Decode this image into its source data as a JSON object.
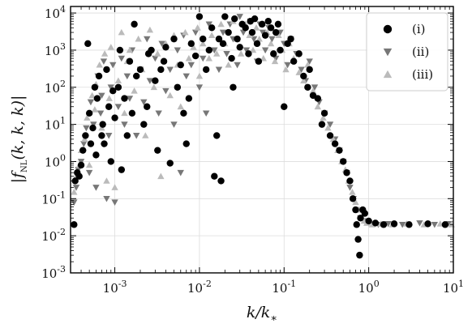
{
  "chart_data": {
    "type": "scatter",
    "xlabel": "k/k_*",
    "ylabel": "|f_NL(k, k, k)|",
    "xscale": "log",
    "yscale": "log",
    "xlim": [
      0.0003,
      10
    ],
    "ylim": [
      0.001,
      15000
    ],
    "x_ticks": [
      0.001,
      0.01,
      0.1,
      1,
      10
    ],
    "x_tick_labels": [
      "10^-3",
      "10^-2",
      "10^-1",
      "10^0",
      "10^1"
    ],
    "y_ticks": [
      0.001,
      0.01,
      0.1,
      1,
      10,
      100,
      1000,
      10000
    ],
    "y_tick_labels": [
      "10^-3",
      "10^-2",
      "10^-1",
      "10^0",
      "10^1",
      "10^2",
      "10^3",
      "10^4"
    ],
    "grid": true,
    "legend_position": "top-right",
    "series": [
      {
        "name": "(i)",
        "marker": "circle",
        "color": "#000000",
        "points": [
          [
            0.00033,
            0.02
          ],
          [
            0.00034,
            0.3
          ],
          [
            0.00036,
            0.5
          ],
          [
            0.00038,
            0.4
          ],
          [
            0.0004,
            0.8
          ],
          [
            0.00042,
            2
          ],
          [
            0.00045,
            5
          ],
          [
            0.00048,
            1500
          ],
          [
            0.0005,
            20
          ],
          [
            0.00052,
            3
          ],
          [
            0.00055,
            8
          ],
          [
            0.00058,
            100
          ],
          [
            0.0006,
            1.5
          ],
          [
            0.00062,
            50
          ],
          [
            0.00065,
            200
          ],
          [
            0.0007,
            5
          ],
          [
            0.00072,
            10
          ],
          [
            0.00075,
            3
          ],
          [
            0.0008,
            300
          ],
          [
            0.00085,
            30
          ],
          [
            0.0009,
            1
          ],
          [
            0.00095,
            80
          ],
          [
            0.001,
            15
          ],
          [
            0.0011,
            100
          ],
          [
            0.00115,
            1000
          ],
          [
            0.0012,
            0.6
          ],
          [
            0.0013,
            50
          ],
          [
            0.0014,
            5
          ],
          [
            0.0015,
            500
          ],
          [
            0.0016,
            20
          ],
          [
            0.0017,
            5000
          ],
          [
            0.0018,
            200
          ],
          [
            0.002,
            300
          ],
          [
            0.0022,
            10
          ],
          [
            0.0024,
            30
          ],
          [
            0.0025,
            800
          ],
          [
            0.0027,
            1000
          ],
          [
            0.003,
            150
          ],
          [
            0.0032,
            2
          ],
          [
            0.0035,
            300
          ],
          [
            0.0038,
            500
          ],
          [
            0.004,
            1200
          ],
          [
            0.0045,
            0.9
          ],
          [
            0.005,
            2000
          ],
          [
            0.0055,
            100
          ],
          [
            0.006,
            400
          ],
          [
            0.0065,
            20
          ],
          [
            0.007,
            3
          ],
          [
            0.0075,
            50
          ],
          [
            0.008,
            1500
          ],
          [
            0.009,
            700
          ],
          [
            0.01,
            8000
          ],
          [
            0.011,
            2000
          ],
          [
            0.012,
            300
          ],
          [
            0.013,
            1000
          ],
          [
            0.014,
            4000
          ],
          [
            0.015,
            0.4
          ],
          [
            0.016,
            5
          ],
          [
            0.017,
            2000
          ],
          [
            0.018,
            0.3
          ],
          [
            0.019,
            1500
          ],
          [
            0.02,
            8000
          ],
          [
            0.022,
            3000
          ],
          [
            0.024,
            600
          ],
          [
            0.025,
            100
          ],
          [
            0.026,
            7000
          ],
          [
            0.028,
            2000
          ],
          [
            0.03,
            1200
          ],
          [
            0.032,
            5000
          ],
          [
            0.035,
            4000
          ],
          [
            0.038,
            800
          ],
          [
            0.04,
            6000
          ],
          [
            0.042,
            3000
          ],
          [
            0.045,
            7000
          ],
          [
            0.048,
            1500
          ],
          [
            0.05,
            500
          ],
          [
            0.055,
            5000
          ],
          [
            0.06,
            2500
          ],
          [
            0.065,
            6000
          ],
          [
            0.07,
            4000
          ],
          [
            0.075,
            800
          ],
          [
            0.08,
            3000
          ],
          [
            0.085,
            5000
          ],
          [
            0.09,
            1000
          ],
          [
            0.1,
            30
          ],
          [
            0.11,
            1500
          ],
          [
            0.12,
            2000
          ],
          [
            0.13,
            500
          ],
          [
            0.15,
            800
          ],
          [
            0.17,
            200
          ],
          [
            0.19,
            100
          ],
          [
            0.2,
            300
          ],
          [
            0.22,
            60
          ],
          [
            0.25,
            50
          ],
          [
            0.28,
            10
          ],
          [
            0.3,
            20
          ],
          [
            0.35,
            5
          ],
          [
            0.4,
            3
          ],
          [
            0.45,
            2
          ],
          [
            0.5,
            1
          ],
          [
            0.55,
            0.5
          ],
          [
            0.6,
            0.3
          ],
          [
            0.65,
            0.1
          ],
          [
            0.7,
            0.05
          ],
          [
            0.72,
            0.02
          ],
          [
            0.75,
            0.008
          ],
          [
            0.78,
            0.003
          ],
          [
            0.8,
            0.03
          ],
          [
            0.85,
            0.05
          ],
          [
            0.9,
            0.04
          ],
          [
            1.0,
            0.025
          ],
          [
            1.2,
            0.022
          ],
          [
            1.5,
            0.02
          ],
          [
            2,
            0.021
          ],
          [
            3,
            0.02
          ],
          [
            5,
            0.021
          ],
          [
            8,
            0.02
          ]
        ]
      },
      {
        "name": "(ii)",
        "marker": "triangle-down",
        "color": "#777777",
        "points": [
          [
            0.00033,
            0.08
          ],
          [
            0.00035,
            0.2
          ],
          [
            0.00037,
            0.6
          ],
          [
            0.0004,
            1
          ],
          [
            0.00043,
            3
          ],
          [
            0.00046,
            8
          ],
          [
            0.0005,
            0.5
          ],
          [
            0.00052,
            40
          ],
          [
            0.00056,
            10
          ],
          [
            0.0006,
            0.2
          ],
          [
            0.00063,
            200
          ],
          [
            0.00068,
            20
          ],
          [
            0.0007,
            60
          ],
          [
            0.00074,
            500
          ],
          [
            0.0008,
            0.1
          ],
          [
            0.00085,
            5
          ],
          [
            0.0009,
            100
          ],
          [
            0.00095,
            400
          ],
          [
            0.001,
            0.08
          ],
          [
            0.0011,
            30
          ],
          [
            0.0012,
            600
          ],
          [
            0.0013,
            10
          ],
          [
            0.0014,
            200
          ],
          [
            0.0015,
            50
          ],
          [
            0.0016,
            1000
          ],
          [
            0.0018,
            5
          ],
          [
            0.002,
            300
          ],
          [
            0.0022,
            40
          ],
          [
            0.0024,
            2000
          ],
          [
            0.0026,
            150
          ],
          [
            0.003,
            600
          ],
          [
            0.0033,
            20
          ],
          [
            0.0036,
            1500
          ],
          [
            0.004,
            80
          ],
          [
            0.0045,
            300
          ],
          [
            0.005,
            10
          ],
          [
            0.0055,
            1000
          ],
          [
            0.006,
            0.5
          ],
          [
            0.0065,
            2500
          ],
          [
            0.007,
            200
          ],
          [
            0.008,
            400
          ],
          [
            0.009,
            3000
          ],
          [
            0.01,
            100
          ],
          [
            0.011,
            600
          ],
          [
            0.012,
            20
          ],
          [
            0.013,
            5000
          ],
          [
            0.015,
            1000
          ],
          [
            0.017,
            300
          ],
          [
            0.019,
            3000
          ],
          [
            0.021,
            800
          ],
          [
            0.023,
            5000
          ],
          [
            0.025,
            2000
          ],
          [
            0.028,
            400
          ],
          [
            0.03,
            8000
          ],
          [
            0.033,
            3000
          ],
          [
            0.036,
            1000
          ],
          [
            0.04,
            6000
          ],
          [
            0.044,
            2000
          ],
          [
            0.048,
            500
          ],
          [
            0.052,
            5000
          ],
          [
            0.056,
            3000
          ],
          [
            0.06,
            1000
          ],
          [
            0.066,
            4000
          ],
          [
            0.072,
            2000
          ],
          [
            0.08,
            600
          ],
          [
            0.09,
            3000
          ],
          [
            0.1,
            1500
          ],
          [
            0.11,
            400
          ],
          [
            0.12,
            2000
          ],
          [
            0.14,
            800
          ],
          [
            0.16,
            300
          ],
          [
            0.18,
            150
          ],
          [
            0.2,
            500
          ],
          [
            0.23,
            100
          ],
          [
            0.26,
            40
          ],
          [
            0.3,
            20
          ],
          [
            0.35,
            10
          ],
          [
            0.4,
            4
          ],
          [
            0.45,
            2
          ],
          [
            0.5,
            1
          ],
          [
            0.55,
            0.5
          ],
          [
            0.6,
            0.2
          ],
          [
            0.66,
            0.1
          ],
          [
            0.72,
            0.05
          ],
          [
            0.8,
            0.03
          ],
          [
            0.9,
            0.025
          ],
          [
            1.0,
            0.022
          ],
          [
            1.3,
            0.02
          ],
          [
            1.7,
            0.021
          ],
          [
            2.5,
            0.02
          ],
          [
            4,
            0.022
          ],
          [
            6,
            0.02
          ],
          [
            9,
            0.021
          ]
        ]
      },
      {
        "name": "(iii)",
        "marker": "triangle-up",
        "color": "#bbbbbb",
        "points": [
          [
            0.00033,
            0.15
          ],
          [
            0.00035,
            0.4
          ],
          [
            0.00038,
            0.8
          ],
          [
            0.0004,
            2
          ],
          [
            0.00044,
            4
          ],
          [
            0.00047,
            15
          ],
          [
            0.0005,
            0.8
          ],
          [
            0.00054,
            60
          ],
          [
            0.00058,
            25
          ],
          [
            0.0006,
            120
          ],
          [
            0.00066,
            400
          ],
          [
            0.0007,
            8
          ],
          [
            0.00076,
            800
          ],
          [
            0.0008,
            0.3
          ],
          [
            0.00086,
            50
          ],
          [
            0.0009,
            1200
          ],
          [
            0.001,
            0.2
          ],
          [
            0.0011,
            150
          ],
          [
            0.0012,
            3000
          ],
          [
            0.0013,
            20
          ],
          [
            0.0014,
            500
          ],
          [
            0.0015,
            1000
          ],
          [
            0.0017,
            80
          ],
          [
            0.0019,
            2000
          ],
          [
            0.0021,
            300
          ],
          [
            0.0023,
            5
          ],
          [
            0.0026,
            3500
          ],
          [
            0.0029,
            100
          ],
          [
            0.0032,
            800
          ],
          [
            0.0035,
            0.4
          ],
          [
            0.004,
            1500
          ],
          [
            0.0045,
            60
          ],
          [
            0.005,
            2500
          ],
          [
            0.0055,
            400
          ],
          [
            0.006,
            30
          ],
          [
            0.0068,
            3000
          ],
          [
            0.0075,
            600
          ],
          [
            0.0085,
            1200
          ],
          [
            0.0095,
            4000
          ],
          [
            0.01,
            200
          ],
          [
            0.011,
            1500
          ],
          [
            0.013,
            600
          ],
          [
            0.014,
            2500
          ],
          [
            0.016,
            800
          ],
          [
            0.018,
            5000
          ],
          [
            0.02,
            1500
          ],
          [
            0.022,
            400
          ],
          [
            0.025,
            6000
          ],
          [
            0.028,
            2000
          ],
          [
            0.031,
            800
          ],
          [
            0.035,
            5000
          ],
          [
            0.039,
            2500
          ],
          [
            0.043,
            1000
          ],
          [
            0.047,
            4000
          ],
          [
            0.051,
            2000
          ],
          [
            0.057,
            600
          ],
          [
            0.063,
            3000
          ],
          [
            0.07,
            1500
          ],
          [
            0.078,
            500
          ],
          [
            0.086,
            2500
          ],
          [
            0.095,
            1000
          ],
          [
            0.105,
            300
          ],
          [
            0.115,
            1500
          ],
          [
            0.13,
            600
          ],
          [
            0.15,
            250
          ],
          [
            0.17,
            150
          ],
          [
            0.19,
            400
          ],
          [
            0.22,
            80
          ],
          [
            0.25,
            30
          ],
          [
            0.29,
            15
          ],
          [
            0.33,
            8
          ],
          [
            0.38,
            4
          ],
          [
            0.43,
            2
          ],
          [
            0.48,
            1
          ],
          [
            0.53,
            0.6
          ],
          [
            0.58,
            0.3
          ],
          [
            0.64,
            0.15
          ],
          [
            0.7,
            0.08
          ],
          [
            0.76,
            0.05
          ],
          [
            0.82,
            0.03
          ],
          [
            0.88,
            0.025
          ],
          [
            0.95,
            0.022
          ],
          [
            1.1,
            0.02
          ],
          [
            1.4,
            0.021
          ],
          [
            1.9,
            0.02
          ],
          [
            2.8,
            0.021
          ],
          [
            4.5,
            0.02
          ],
          [
            7,
            0.021
          ],
          [
            9.5,
            0.02
          ]
        ]
      }
    ]
  }
}
